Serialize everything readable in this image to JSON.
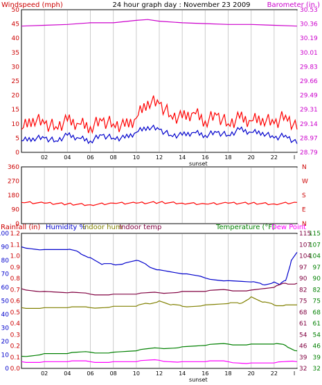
{
  "header": {
    "windspeed_label": "Windspeed (mph)",
    "title": "24 hour graph day : November 23 2009",
    "barometer_label": "Barometer (in.)"
  },
  "colors": {
    "windspeed": "#ff0000",
    "windavg": "#0000cc",
    "barometer": "#cc00cc",
    "direction": "#ff0000",
    "rain_label": "#cc0000",
    "humidity": "#0000cc",
    "indoor_hum": "#808000",
    "indoor_temp": "#800040",
    "temperature": "#008000",
    "dew_point": "#ff00ff",
    "grid": "#cccccc",
    "frame": "#000000"
  },
  "x_ticks": [
    "02",
    "04",
    "06",
    "08",
    "10",
    "12",
    "14",
    "16",
    "18",
    "20",
    "22",
    "I"
  ],
  "sunset_label": "sunset",
  "chart_data": [
    {
      "type": "line",
      "name": "wind-barometer",
      "left_ylim": [
        0,
        50
      ],
      "left_ticks": [
        "0",
        "5",
        "10",
        "15",
        "20",
        "25",
        "30",
        "35",
        "40",
        "45",
        "50"
      ],
      "right_ticks": [
        "28.79",
        "28.97",
        "29.14",
        "29.31",
        "29.49",
        "29.66",
        "29.83",
        "30.01",
        "30.19",
        "30.36",
        "30.53"
      ],
      "series": [
        {
          "name": "Windspeed (mph)",
          "color": "#ff0000",
          "x": [
            0,
            1,
            2,
            3,
            4,
            5,
            6,
            7,
            8,
            9,
            10,
            11,
            12,
            13,
            14,
            15,
            16,
            17,
            18,
            19,
            20,
            21,
            22,
            23,
            24
          ],
          "values": [
            8,
            12,
            10,
            9,
            11,
            10,
            9,
            11,
            10,
            9,
            12,
            18,
            17,
            13,
            12,
            14,
            11,
            13,
            10,
            12,
            11,
            12,
            10,
            13,
            8
          ]
        },
        {
          "name": "wind average",
          "color": "#0000cc",
          "x": [
            0,
            1,
            2,
            3,
            4,
            5,
            6,
            7,
            8,
            9,
            10,
            11,
            12,
            13,
            14,
            15,
            16,
            17,
            18,
            19,
            20,
            21,
            22,
            23,
            24
          ],
          "values": [
            4,
            5,
            5,
            4,
            6,
            5,
            4,
            6,
            5,
            5,
            7,
            9,
            8,
            6,
            6,
            7,
            6,
            7,
            6,
            8,
            7,
            7,
            5,
            6,
            3
          ]
        },
        {
          "name": "Barometer (in.)",
          "color": "#cc00cc",
          "x": [
            0,
            2,
            4,
            6,
            8,
            10,
            11,
            12,
            14,
            16,
            18,
            20,
            22,
            24
          ],
          "values": [
            30.33,
            30.34,
            30.35,
            30.37,
            30.37,
            30.4,
            30.41,
            30.39,
            30.37,
            30.36,
            30.35,
            30.35,
            30.34,
            30.33
          ]
        }
      ]
    },
    {
      "type": "line",
      "name": "wind-direction",
      "ylim": [
        0,
        360
      ],
      "left_ticks": [
        "0",
        "90",
        "180",
        "270",
        "360"
      ],
      "right_ticks": [
        "N",
        "E",
        "S",
        "W",
        "N"
      ],
      "series": [
        {
          "name": "direction",
          "color": "#ff0000",
          "x": [
            0,
            2,
            4,
            6,
            8,
            10,
            12,
            14,
            16,
            18,
            20,
            22,
            24
          ],
          "values": [
            135,
            130,
            125,
            120,
            130,
            130,
            135,
            130,
            125,
            130,
            130,
            125,
            135
          ]
        }
      ]
    },
    {
      "type": "line",
      "name": "temperature-humidity",
      "rain_ticks": [
        "0.0",
        "0.1",
        "0.2",
        "0.3",
        "0.4",
        "0.5",
        "0.6",
        "0.7",
        "0.8",
        "0.9",
        "1.0",
        "1.1",
        "1.2"
      ],
      "humidity_ticks": [
        "0",
        "10",
        "20",
        "30",
        "40",
        "50",
        "60",
        "70",
        "80",
        "90",
        "100"
      ],
      "temp_ticks": [
        "32",
        "39",
        "46",
        "54",
        "61",
        "68",
        "75",
        "82",
        "90",
        "97",
        "104",
        "107",
        "115"
      ],
      "series": [
        {
          "name": "Humidity %",
          "color": "#0000cc",
          "x": [
            0,
            2,
            4,
            5,
            6,
            7,
            8,
            9,
            10,
            11,
            12,
            14,
            16,
            18,
            20,
            21,
            22,
            22.5,
            23,
            23.5,
            24
          ],
          "values": [
            90,
            88,
            88,
            86,
            82,
            77,
            77,
            78,
            80,
            76,
            73,
            70,
            67,
            65,
            64,
            62,
            64,
            62,
            65,
            80,
            86
          ]
        },
        {
          "name": "Indoor hum",
          "color": "#808000",
          "x": [
            0,
            2,
            4,
            6,
            8,
            10,
            11,
            12,
            13,
            14,
            16,
            18,
            19,
            20,
            21,
            22,
            23,
            24
          ],
          "values": [
            45,
            45,
            45,
            45,
            46,
            46,
            48,
            50,
            47,
            46,
            47,
            48,
            48,
            53,
            49,
            47,
            47,
            47
          ]
        },
        {
          "name": "Indoor temp",
          "color": "#800040",
          "x": [
            0,
            2,
            4,
            6,
            8,
            10,
            12,
            14,
            16,
            18,
            20,
            22,
            23,
            24
          ],
          "values": [
            59,
            57,
            56,
            55,
            55,
            55,
            56,
            57,
            57,
            58,
            58,
            60,
            63,
            63
          ]
        },
        {
          "name": "Temperature (°F)",
          "color": "#008000",
          "x": [
            0,
            2,
            4,
            6,
            8,
            10,
            12,
            14,
            16,
            18,
            20,
            22,
            23,
            24
          ],
          "values": [
            9,
            11,
            11,
            12,
            12,
            13,
            15,
            16,
            17,
            18,
            18,
            18,
            17,
            13
          ]
        },
        {
          "name": "Dew Point",
          "color": "#ff00ff",
          "x": [
            0,
            2,
            4,
            6,
            8,
            10,
            12,
            14,
            16,
            18,
            20,
            22,
            24
          ],
          "values": [
            5,
            5,
            5,
            5,
            5,
            5,
            6,
            5,
            5,
            5,
            4,
            4,
            5
          ]
        }
      ]
    }
  ],
  "bottom_header": {
    "rainfall": "Rainfall (in)",
    "humidity": "Humidity %",
    "indoor_hum": "Indoor hum",
    "indoor_temp": "Indoor temp",
    "temperature": "Temperature (°F)",
    "dew_point": "Dew Point"
  }
}
